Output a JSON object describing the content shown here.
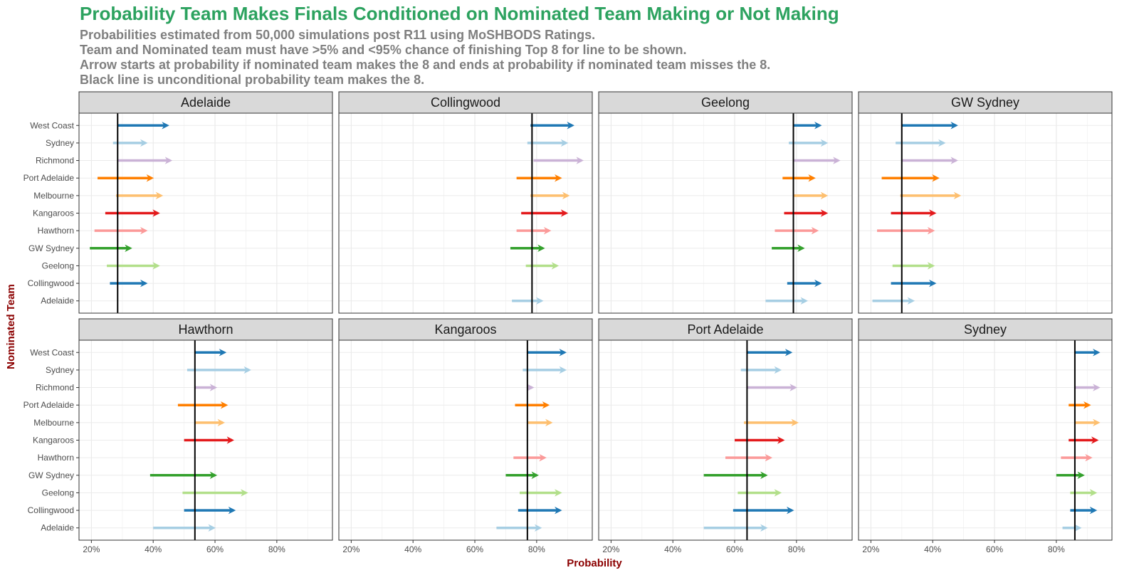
{
  "chart_data": {
    "type": "arrow-facet",
    "title": "Probability Team Makes Finals Conditioned on Nominated Team Making or Not Making",
    "subtitle": [
      "Probabilities estimated from 50,000 simulations post R11 using MoSHBODS Ratings.",
      "Team and Nominated team must have >5% and <95% chance of finishing Top 8 for line to be shown.",
      "Arrow starts at probability if nominated team makes the 8 and ends at probability if nominated team misses the 8.",
      "Black line is unconditional probability team makes the 8."
    ],
    "xlabel": "Probability",
    "ylabel": "Nominated Team",
    "xlim": [
      0.16,
      0.98
    ],
    "x_ticks": [
      0.2,
      0.4,
      0.6,
      0.8
    ],
    "x_tick_labels": [
      "20%",
      "40%",
      "60%",
      "80%"
    ],
    "grid": true,
    "categories": [
      "West Coast",
      "Sydney",
      "Richmond",
      "Port Adelaide",
      "Melbourne",
      "Kangaroos",
      "Hawthorn",
      "GW Sydney",
      "Geelong",
      "Collingwood",
      "Adelaide"
    ],
    "colors": {
      "West Coast": "#1f78b4",
      "Sydney": "#a6cee3",
      "Richmond": "#cab2d6",
      "Port Adelaide": "#ff7f00",
      "Melbourne": "#fdbf6f",
      "Kangaroos": "#e31a1c",
      "Hawthorn": "#fb9a99",
      "GW Sydney": "#33a02c",
      "Geelong": "#b2df8a",
      "Collingwood": "#1f78b4",
      "Adelaide": "#a6cee3"
    },
    "panels": [
      {
        "team": "Adelaide",
        "unconditional": 0.285,
        "arrows": [
          {
            "nominated": "West Coast",
            "start": 0.285,
            "end": 0.445
          },
          {
            "nominated": "Sydney",
            "start": 0.27,
            "end": 0.375
          },
          {
            "nominated": "Richmond",
            "start": 0.285,
            "end": 0.455
          },
          {
            "nominated": "Port Adelaide",
            "start": 0.22,
            "end": 0.395
          },
          {
            "nominated": "Melbourne",
            "start": 0.28,
            "end": 0.425
          },
          {
            "nominated": "Kangaroos",
            "start": 0.245,
            "end": 0.415
          },
          {
            "nominated": "Hawthorn",
            "start": 0.21,
            "end": 0.375
          },
          {
            "nominated": "GW Sydney",
            "start": 0.195,
            "end": 0.325
          },
          {
            "nominated": "Geelong",
            "start": 0.25,
            "end": 0.415
          },
          {
            "nominated": "Collingwood",
            "start": 0.26,
            "end": 0.375
          }
        ]
      },
      {
        "team": "Collingwood",
        "unconditional": 0.785,
        "arrows": [
          {
            "nominated": "West Coast",
            "start": 0.78,
            "end": 0.915
          },
          {
            "nominated": "Sydney",
            "start": 0.77,
            "end": 0.895
          },
          {
            "nominated": "Richmond",
            "start": 0.79,
            "end": 0.945
          },
          {
            "nominated": "Port Adelaide",
            "start": 0.735,
            "end": 0.875
          },
          {
            "nominated": "Melbourne",
            "start": 0.78,
            "end": 0.9
          },
          {
            "nominated": "Kangaroos",
            "start": 0.75,
            "end": 0.895
          },
          {
            "nominated": "Hawthorn",
            "start": 0.735,
            "end": 0.84
          },
          {
            "nominated": "GW Sydney",
            "start": 0.715,
            "end": 0.82
          },
          {
            "nominated": "Geelong",
            "start": 0.765,
            "end": 0.865
          },
          {
            "nominated": "Adelaide",
            "start": 0.72,
            "end": 0.815
          }
        ]
      },
      {
        "team": "Geelong",
        "unconditional": 0.79,
        "arrows": [
          {
            "nominated": "West Coast",
            "start": 0.79,
            "end": 0.875
          },
          {
            "nominated": "Sydney",
            "start": 0.775,
            "end": 0.895
          },
          {
            "nominated": "Richmond",
            "start": 0.79,
            "end": 0.935
          },
          {
            "nominated": "Port Adelaide",
            "start": 0.755,
            "end": 0.855
          },
          {
            "nominated": "Melbourne",
            "start": 0.79,
            "end": 0.895
          },
          {
            "nominated": "Kangaroos",
            "start": 0.76,
            "end": 0.895
          },
          {
            "nominated": "Hawthorn",
            "start": 0.73,
            "end": 0.865
          },
          {
            "nominated": "GW Sydney",
            "start": 0.72,
            "end": 0.82
          },
          {
            "nominated": "Collingwood",
            "start": 0.77,
            "end": 0.875
          },
          {
            "nominated": "Adelaide",
            "start": 0.7,
            "end": 0.83
          }
        ]
      },
      {
        "team": "GW Sydney",
        "unconditional": 0.3,
        "arrows": [
          {
            "nominated": "West Coast",
            "start": 0.3,
            "end": 0.475
          },
          {
            "nominated": "Sydney",
            "start": 0.28,
            "end": 0.435
          },
          {
            "nominated": "Richmond",
            "start": 0.3,
            "end": 0.475
          },
          {
            "nominated": "Port Adelaide",
            "start": 0.235,
            "end": 0.415
          },
          {
            "nominated": "Melbourne",
            "start": 0.295,
            "end": 0.485
          },
          {
            "nominated": "Kangaroos",
            "start": 0.265,
            "end": 0.405
          },
          {
            "nominated": "Hawthorn",
            "start": 0.22,
            "end": 0.4
          },
          {
            "nominated": "Geelong",
            "start": 0.27,
            "end": 0.4
          },
          {
            "nominated": "Collingwood",
            "start": 0.265,
            "end": 0.405
          },
          {
            "nominated": "Adelaide",
            "start": 0.205,
            "end": 0.335
          }
        ]
      },
      {
        "team": "Hawthorn",
        "unconditional": 0.535,
        "arrows": [
          {
            "nominated": "West Coast",
            "start": 0.535,
            "end": 0.63
          },
          {
            "nominated": "Sydney",
            "start": 0.51,
            "end": 0.71
          },
          {
            "nominated": "Richmond",
            "start": 0.535,
            "end": 0.6
          },
          {
            "nominated": "Port Adelaide",
            "start": 0.48,
            "end": 0.635
          },
          {
            "nominated": "Melbourne",
            "start": 0.535,
            "end": 0.625
          },
          {
            "nominated": "Kangaroos",
            "start": 0.5,
            "end": 0.655
          },
          {
            "nominated": "GW Sydney",
            "start": 0.39,
            "end": 0.6
          },
          {
            "nominated": "Geelong",
            "start": 0.495,
            "end": 0.7
          },
          {
            "nominated": "Collingwood",
            "start": 0.5,
            "end": 0.66
          },
          {
            "nominated": "Adelaide",
            "start": 0.4,
            "end": 0.595
          }
        ]
      },
      {
        "team": "Kangaroos",
        "unconditional": 0.77,
        "arrows": [
          {
            "nominated": "West Coast",
            "start": 0.77,
            "end": 0.89
          },
          {
            "nominated": "Sydney",
            "start": 0.755,
            "end": 0.89
          },
          {
            "nominated": "Richmond",
            "start": 0.77,
            "end": 0.785
          },
          {
            "nominated": "Port Adelaide",
            "start": 0.73,
            "end": 0.835
          },
          {
            "nominated": "Melbourne",
            "start": 0.77,
            "end": 0.845
          },
          {
            "nominated": "Hawthorn",
            "start": 0.725,
            "end": 0.825
          },
          {
            "nominated": "GW Sydney",
            "start": 0.7,
            "end": 0.8
          },
          {
            "nominated": "Geelong",
            "start": 0.745,
            "end": 0.875
          },
          {
            "nominated": "Collingwood",
            "start": 0.74,
            "end": 0.875
          },
          {
            "nominated": "Adelaide",
            "start": 0.67,
            "end": 0.81
          }
        ]
      },
      {
        "team": "Port Adelaide",
        "unconditional": 0.64,
        "arrows": [
          {
            "nominated": "West Coast",
            "start": 0.64,
            "end": 0.78
          },
          {
            "nominated": "Sydney",
            "start": 0.62,
            "end": 0.745
          },
          {
            "nominated": "Richmond",
            "start": 0.64,
            "end": 0.795
          },
          {
            "nominated": "Melbourne",
            "start": 0.63,
            "end": 0.8
          },
          {
            "nominated": "Kangaroos",
            "start": 0.6,
            "end": 0.755
          },
          {
            "nominated": "Hawthorn",
            "start": 0.57,
            "end": 0.715
          },
          {
            "nominated": "GW Sydney",
            "start": 0.5,
            "end": 0.7
          },
          {
            "nominated": "Geelong",
            "start": 0.61,
            "end": 0.745
          },
          {
            "nominated": "Collingwood",
            "start": 0.595,
            "end": 0.785
          },
          {
            "nominated": "Adelaide",
            "start": 0.5,
            "end": 0.7
          }
        ]
      },
      {
        "team": "Sydney",
        "unconditional": 0.86,
        "arrows": [
          {
            "nominated": "West Coast",
            "start": 0.86,
            "end": 0.935
          },
          {
            "nominated": "Richmond",
            "start": 0.86,
            "end": 0.935
          },
          {
            "nominated": "Port Adelaide",
            "start": 0.84,
            "end": 0.905
          },
          {
            "nominated": "Melbourne",
            "start": 0.86,
            "end": 0.935
          },
          {
            "nominated": "Kangaroos",
            "start": 0.84,
            "end": 0.93
          },
          {
            "nominated": "Hawthorn",
            "start": 0.815,
            "end": 0.91
          },
          {
            "nominated": "GW Sydney",
            "start": 0.8,
            "end": 0.885
          },
          {
            "nominated": "Geelong",
            "start": 0.845,
            "end": 0.925
          },
          {
            "nominated": "Collingwood",
            "start": 0.845,
            "end": 0.925
          },
          {
            "nominated": "Adelaide",
            "start": 0.82,
            "end": 0.875
          }
        ]
      }
    ]
  }
}
